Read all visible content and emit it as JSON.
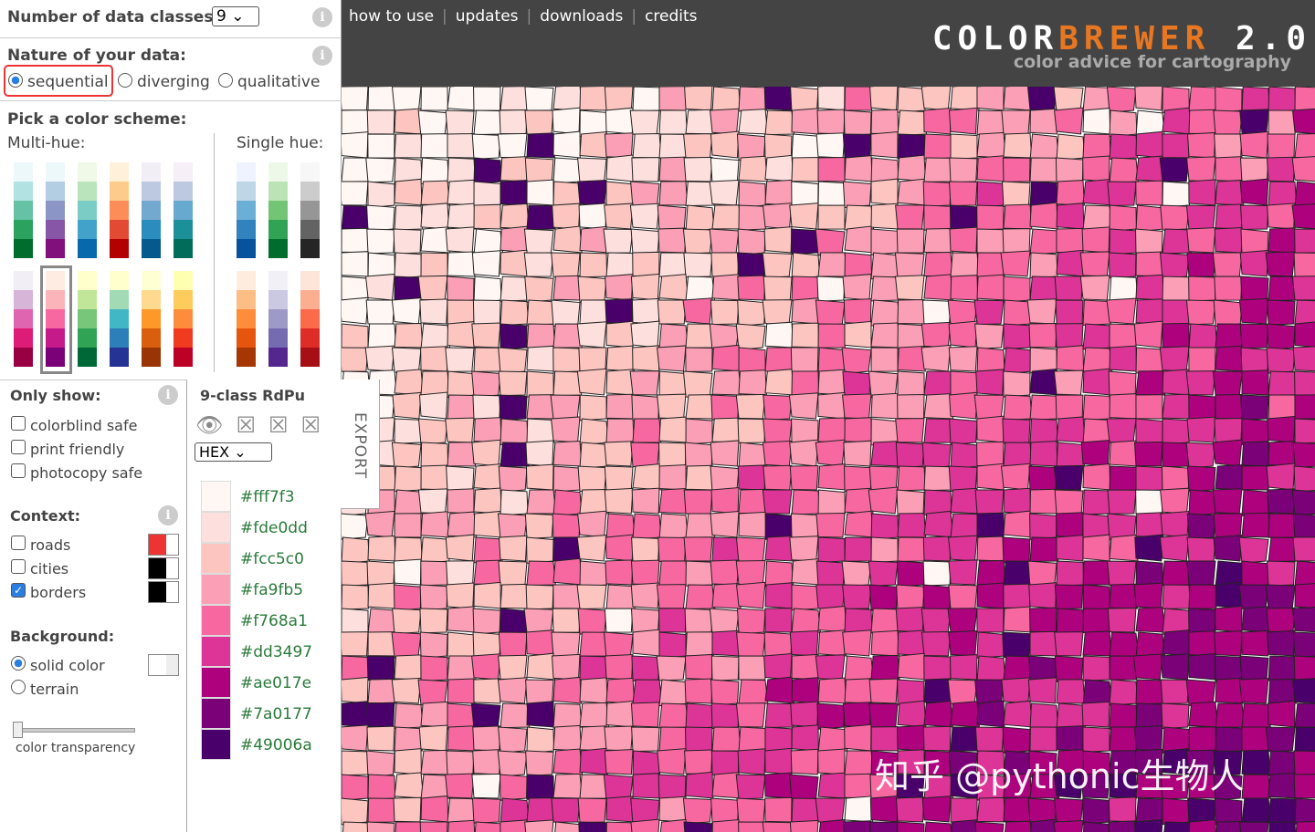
{
  "header": {
    "nav": [
      "how to use",
      "updates",
      "downloads",
      "credits"
    ],
    "logo_color": "COLOR",
    "logo_brewer": "BREWER",
    "logo_version": "2.0",
    "tagline": "color advice for cartography"
  },
  "info_icon": "i",
  "classes": {
    "label": "Number of data classes:",
    "value": "9"
  },
  "nature": {
    "label": "Nature of your data:",
    "options": [
      "sequential",
      "diverging",
      "qualitative"
    ]
  },
  "scheme": {
    "label": "Pick a color scheme:",
    "multi_hue": "Multi-hue:",
    "single_hue": "Single hue:"
  },
  "only_show": {
    "label": "Only show:",
    "options": [
      "colorblind safe",
      "print friendly",
      "photocopy safe"
    ]
  },
  "context": {
    "label": "Context:",
    "options": [
      "roads",
      "cities",
      "borders"
    ]
  },
  "background": {
    "label": "Background:",
    "options": [
      "solid color",
      "terrain"
    ],
    "slider_label": "color transparency"
  },
  "palette": {
    "title": "9-class RdPu",
    "format": "HEX",
    "export": "EXPORT",
    "colors": [
      "#fff7f3",
      "#fde0dd",
      "#fcc5c0",
      "#fa9fb5",
      "#f768a1",
      "#dd3497",
      "#ae017e",
      "#7a0177",
      "#49006a"
    ]
  },
  "watermark": "知乎 @pythonic生物人"
}
